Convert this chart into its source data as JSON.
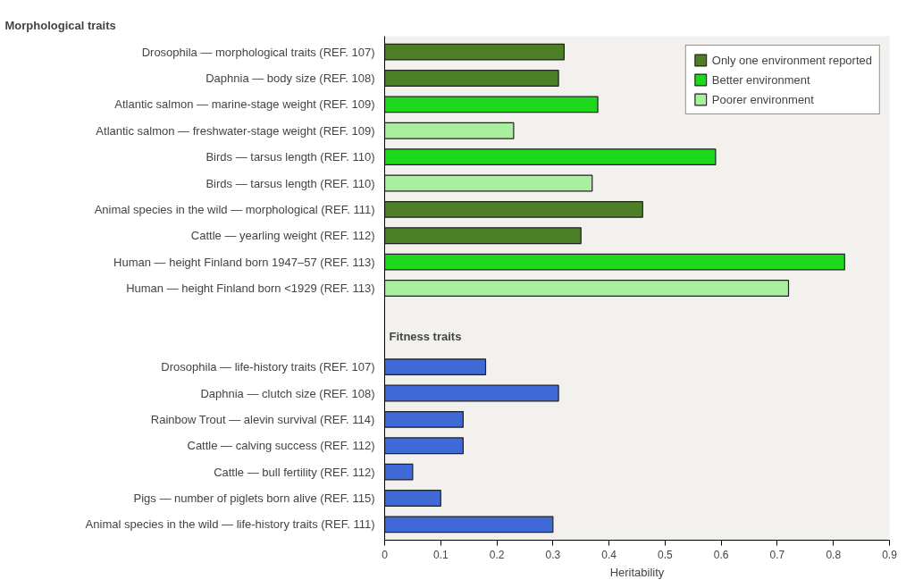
{
  "chart_data": {
    "type": "bar",
    "orientation": "horizontal",
    "title": "Morphological traits",
    "xlabel": "Heritability",
    "categories": [
      "Drosophila — morphological traits (REF. 107)",
      "Daphnia — body size (REF. 108)",
      "Atlantic salmon — marine-stage weight (REF. 109)",
      "Atlantic salmon — freshwater-stage weight (REF. 109)",
      "Birds — tarsus length (REF. 110)",
      "Birds — tarsus length (REF. 110)",
      "Animal species in the wild — morphological (REF. 111)",
      "Cattle — yearling weight (REF. 112)",
      "Human — height Finland born 1947–57 (REF. 113)",
      "Human — height Finland born <1929 (REF. 113)",
      null,
      null,
      "Drosophila — life-history traits (REF. 107)",
      "Daphnia — clutch size (REF. 108)",
      "Rainbow Trout — alevin survival (REF. 114)",
      "Cattle — calving success (REF. 112)",
      "Cattle — bull fertility (REF. 112)",
      "Pigs — number of piglets born alive (REF. 115)",
      "Animal species in the wild — life-history traits (REF. 111)"
    ],
    "series": [
      {
        "name": "Only one environment reported",
        "color": "#4d7f26",
        "values": [
          0.32,
          0.31,
          null,
          null,
          null,
          null,
          0.46,
          0.35,
          null,
          null,
          null,
          null,
          null,
          null,
          null,
          null,
          null,
          null,
          null
        ]
      },
      {
        "name": "Better environment",
        "color": "#1ed81e",
        "values": [
          null,
          null,
          0.38,
          null,
          0.59,
          null,
          null,
          null,
          0.82,
          null,
          null,
          null,
          null,
          null,
          null,
          null,
          null,
          null,
          null
        ]
      },
      {
        "name": "Poorer environment",
        "color": "#aaeea0",
        "values": [
          null,
          null,
          null,
          0.23,
          null,
          0.37,
          null,
          null,
          null,
          0.72,
          null,
          null,
          null,
          null,
          null,
          null,
          null,
          null,
          null
        ]
      },
      {
        "color": "#3f69d6",
        "values": [
          null,
          null,
          null,
          null,
          null,
          null,
          null,
          null,
          null,
          null,
          null,
          null,
          0.18,
          0.31,
          0.14,
          0.14,
          0.05,
          0.1,
          0.3
        ]
      }
    ],
    "xlim": [
      0,
      0.9
    ],
    "xticks": [
      0,
      0.1,
      0.2,
      0.3,
      0.4,
      0.5,
      0.6,
      0.7,
      0.8,
      0.9
    ],
    "annotations": [
      "Fitness traits"
    ],
    "legend": "top right",
    "grid": false
  }
}
